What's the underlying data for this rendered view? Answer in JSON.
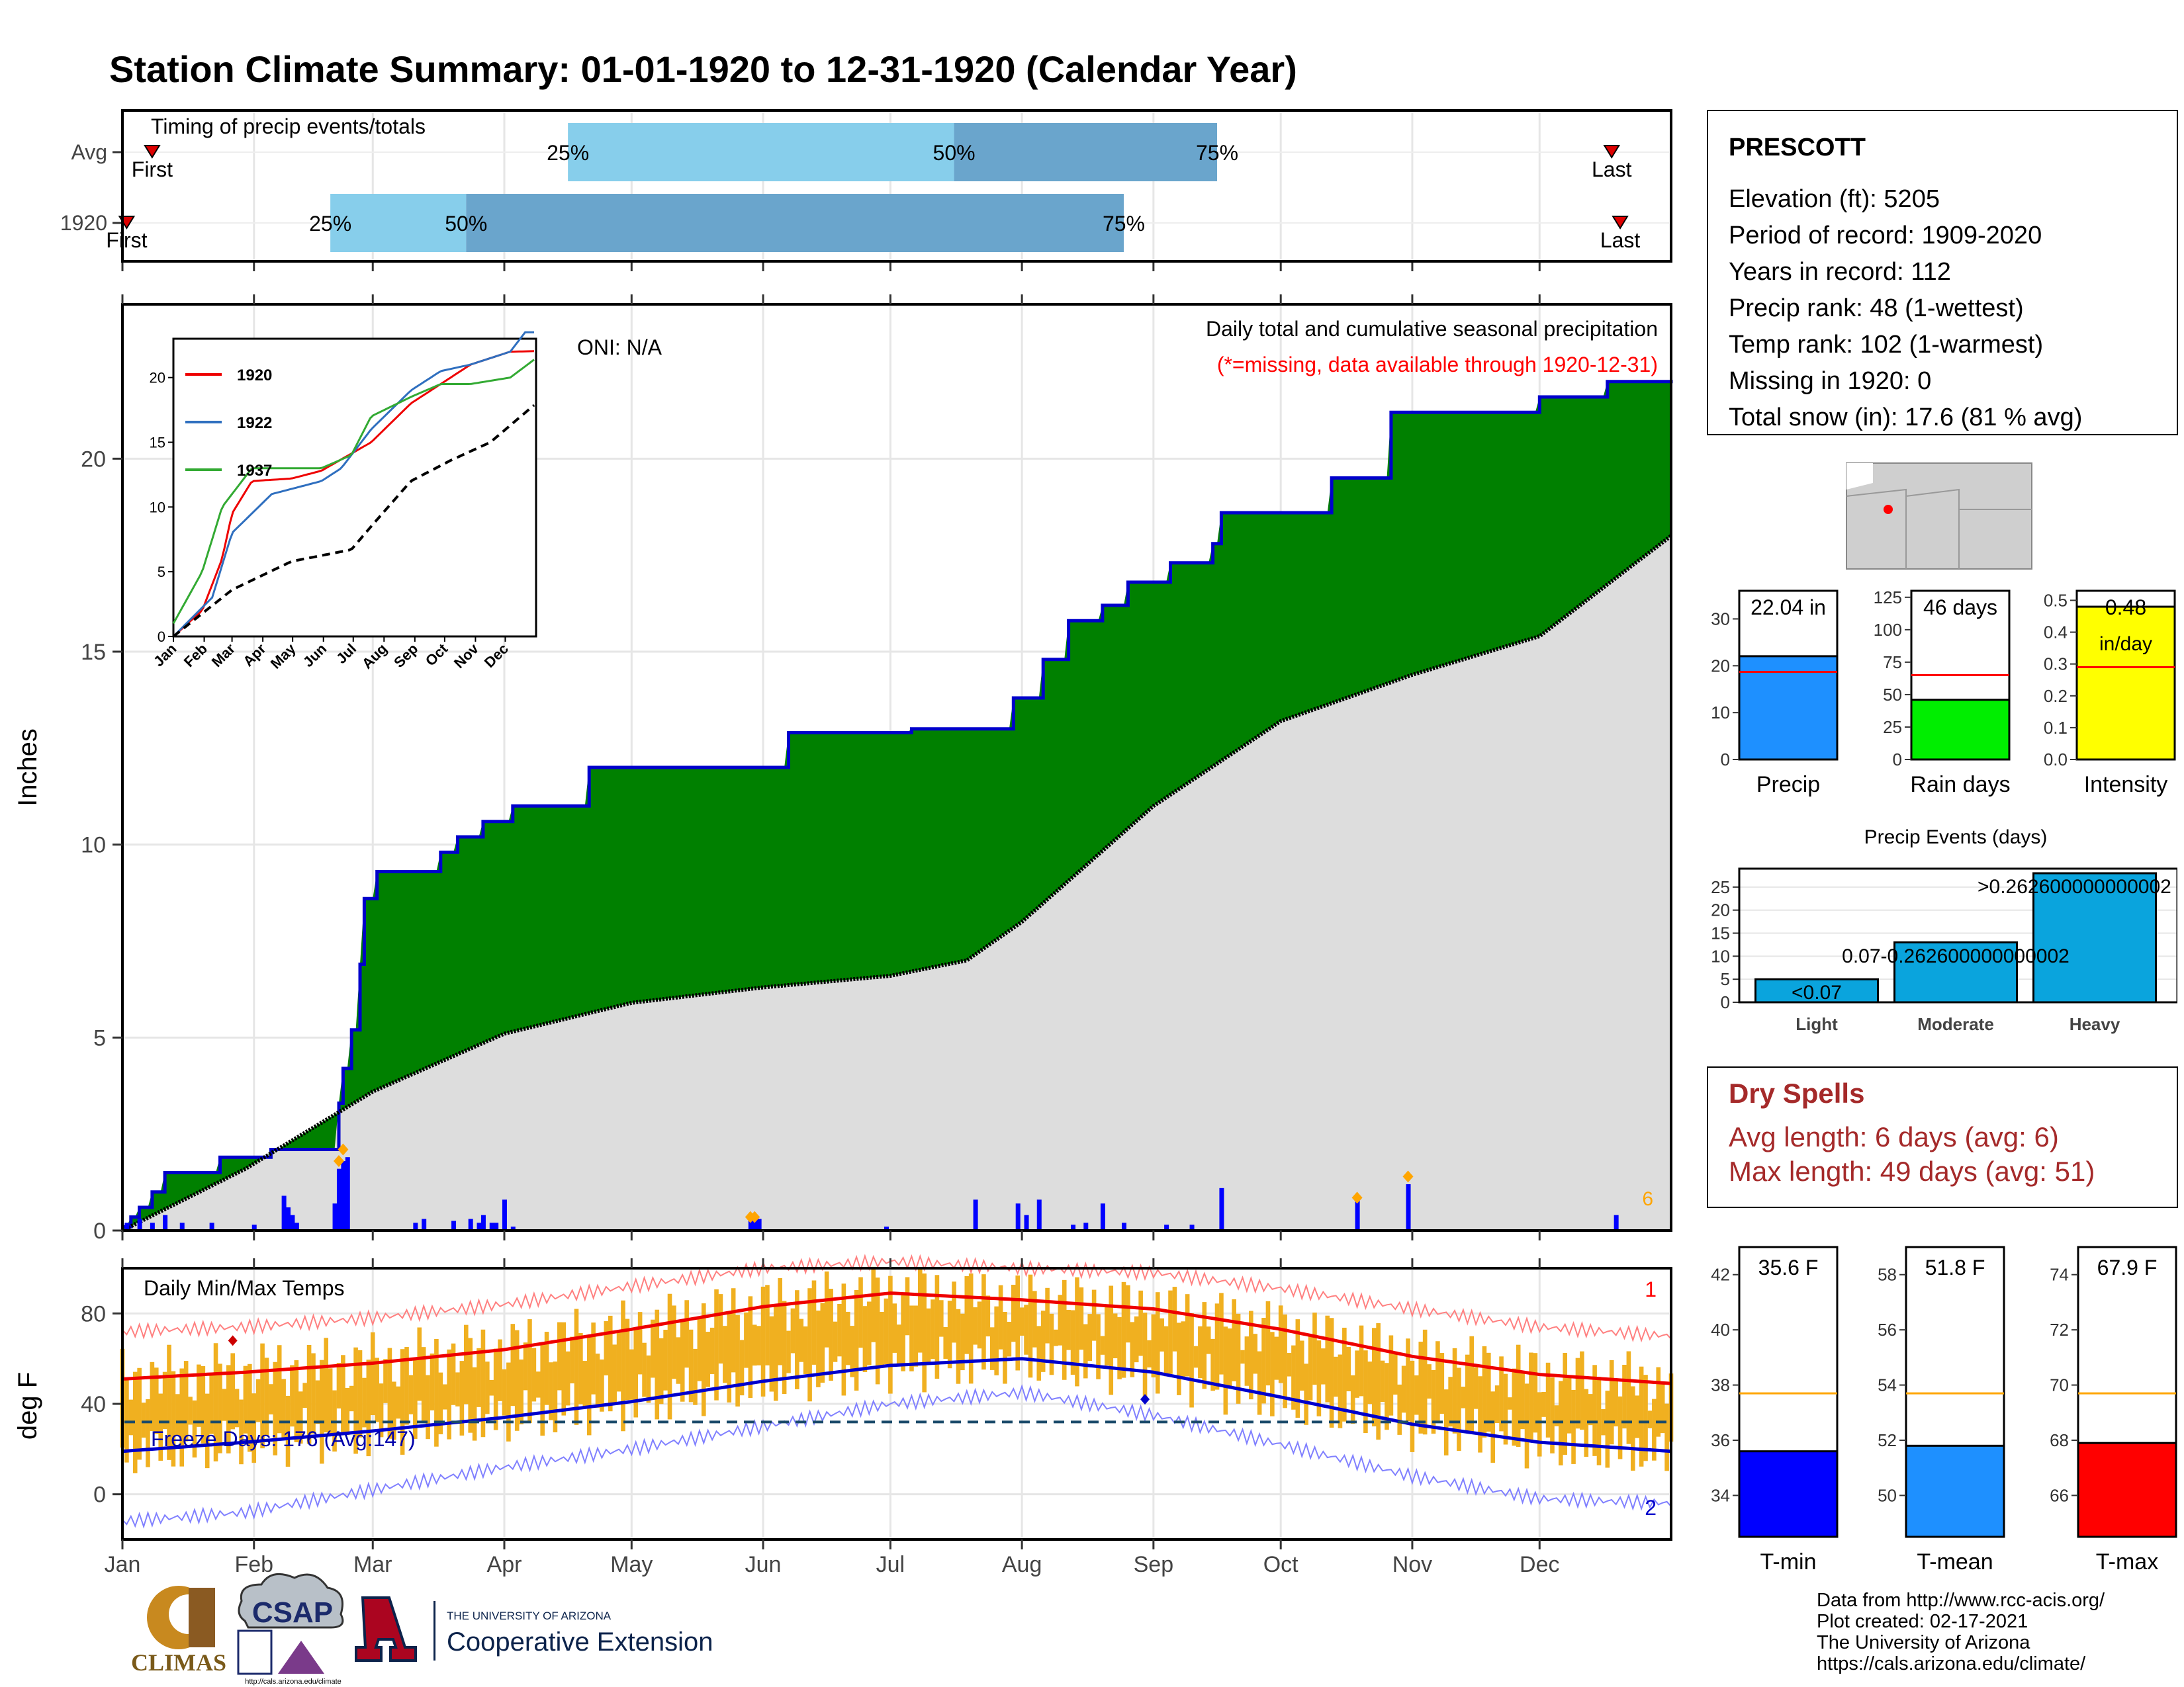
{
  "title": "Station Climate Summary: 01-01-1920 to 12-31-1920 (Calendar Year)",
  "colors": {
    "title": "#0a0a80",
    "q_light": "#87ceeb",
    "q_dark": "#6aa5cc",
    "precip_fill": "#008000",
    "precip_line": "#0000cc",
    "normal_fill": "#dddddd",
    "bar_daily": "#0000ff",
    "accent_orange": "#ffa500",
    "temp_bars": "#f0b020",
    "tmax_line": "#ee0000",
    "tmin_line": "#0000cc",
    "red": "#ff0000",
    "dry_text": "#a52a2a"
  },
  "months": [
    "Jan",
    "Feb",
    "Mar",
    "Apr",
    "May",
    "Jun",
    "Jul",
    "Aug",
    "Sep",
    "Oct",
    "Nov",
    "Dec"
  ],
  "timing": {
    "title": "Timing of precip events/totals",
    "rows": [
      {
        "label": "Avg",
        "first_label": "First",
        "last_label": "Last",
        "first_doy": 8,
        "last_doy": 352,
        "p25_doy": 106,
        "p50_doy": 197,
        "p75_doy": 259,
        "p25_label": "25%",
        "p50_label": "50%",
        "p75_label": "75%"
      },
      {
        "label": "1920",
        "first_label": "First",
        "last_label": "Last",
        "first_doy": 2,
        "last_doy": 354,
        "p25_doy": 50,
        "p50_doy": 82,
        "p75_doy": 237,
        "p25_label": "25%",
        "p50_label": "50%",
        "p75_label": "75%"
      }
    ]
  },
  "precip_panel": {
    "ylabel": "Inches",
    "yticks": [
      "0",
      "5",
      "10",
      "15",
      "20"
    ],
    "subtitle": "Daily total and cumulative seasonal precipitation",
    "missing_note": "(*=missing, data available through 1920-12-31)",
    "oni": "ONI: N/A",
    "count_label": "6"
  },
  "inset": {
    "yticks": [
      "0",
      "5",
      "10",
      "15",
      "20"
    ],
    "xticks": [
      "Jan",
      "Feb",
      "Mar",
      "Apr",
      "May",
      "Jun",
      "Jul",
      "Aug",
      "Sep",
      "Oct",
      "Nov",
      "Dec"
    ],
    "legend": [
      {
        "name": "1920",
        "color": "#ee0000"
      },
      {
        "name": "1922",
        "color": "#2f6fbf"
      },
      {
        "name": "1937",
        "color": "#33aa33"
      }
    ]
  },
  "temp_panel": {
    "ylabel": "deg F",
    "title": "Daily Min/Max Temps",
    "yticks": [
      "0",
      "40",
      "80"
    ],
    "freeze_label": "Freeze Days: 176 (Avg:147)",
    "max_count_label": "1",
    "min_count_label": "2"
  },
  "station": {
    "name": "PRESCOTT",
    "lines": [
      "Elevation (ft): 5205",
      "Period of record: 1909-2020",
      "Years in record: 112",
      "Precip rank: 48 (1-wettest)",
      "Temp rank: 102 (1-warmest)",
      "Missing in 1920: 0",
      "Total snow (in): 17.6 (81 % avg)"
    ]
  },
  "mini_bars": [
    {
      "label": "Precip",
      "value_label": "22.04 in",
      "value": 22.04,
      "avg": 18.7,
      "yticks": [
        "0",
        "10",
        "20",
        "30"
      ],
      "ymax": 36,
      "color": "#1e90ff"
    },
    {
      "label": "Rain days",
      "value_label": "46 days",
      "value": 46,
      "avg": 65,
      "yticks": [
        "0",
        "25",
        "50",
        "75",
        "100",
        "125"
      ],
      "ymax": 130,
      "color": "#00ee00"
    },
    {
      "label": "Intensity",
      "value_label": "0.48",
      "value_label2": "in/day",
      "value": 0.48,
      "avg": 0.29,
      "yticks": [
        "0.0",
        "0.1",
        "0.2",
        "0.3",
        "0.4",
        "0.5"
      ],
      "ymax": 0.53,
      "color": "#ffff00"
    }
  ],
  "events": {
    "title": "Precip Events (days)",
    "categories": [
      "Light",
      "Moderate",
      "Heavy"
    ],
    "values": [
      5,
      13,
      28
    ],
    "value_labels": [
      "<0.07",
      "0.07-0.262600000000002",
      ">0.262600000000002"
    ],
    "yticks": [
      "0",
      "5",
      "10",
      "15",
      "20",
      "25"
    ],
    "color": "#0aa4dd"
  },
  "dry_spells": {
    "title": "Dry Spells",
    "avg_line": "Avg length: 6 days (avg: 6)",
    "max_line": "Max length: 49 days (avg: 51)"
  },
  "temp_bars": [
    {
      "label": "T-min",
      "value_label": "35.6 F",
      "value": 35.6,
      "avg": 37.7,
      "ymin": 32.5,
      "ymax": 43,
      "yticks": [
        "34",
        "36",
        "38",
        "40",
        "42"
      ],
      "color": "#0000ff"
    },
    {
      "label": "T-mean",
      "value_label": "51.8 F",
      "value": 51.8,
      "avg": 53.7,
      "ymin": 48.5,
      "ymax": 59,
      "yticks": [
        "50",
        "52",
        "54",
        "56",
        "58"
      ],
      "color": "#1e90ff"
    },
    {
      "label": "T-max",
      "value_label": "67.9 F",
      "value": 67.9,
      "avg": 69.7,
      "ymin": 64.5,
      "ymax": 75,
      "yticks": [
        "66",
        "68",
        "70",
        "72",
        "74"
      ],
      "color": "#ff0000"
    }
  ],
  "credits": [
    "Data from http://www.rcc-acis.org/",
    "Plot created: 02-17-2021",
    "The University of Arizona",
    "https://cals.arizona.edu/climate/"
  ],
  "logos": {
    "climas": "CLIMAS",
    "csap": "CSAP",
    "csap_url": "http://cals.arizona.edu/climate",
    "ua_small": "THE UNIVERSITY OF ARIZONA",
    "ua_big": "Cooperative Extension"
  },
  "chart_data": [
    {
      "type": "bar",
      "title": "Timing of precip events/totals",
      "categories": [
        "Avg",
        "1920"
      ],
      "series": [
        {
          "name": "25%",
          "values": [
            106,
            50
          ]
        },
        {
          "name": "50%",
          "values": [
            197,
            82
          ]
        },
        {
          "name": "75%",
          "values": [
            259,
            237
          ]
        }
      ]
    },
    {
      "type": "area",
      "title": "Daily total and cumulative seasonal precipitation",
      "ylabel": "Inches",
      "ylim": [
        0,
        24
      ],
      "x_unit": "day of year",
      "series": [
        {
          "name": "1920 cumulative",
          "x": [
            1,
            3,
            5,
            8,
            11,
            24,
            36,
            52,
            53,
            55,
            57,
            58,
            61,
            76,
            80,
            86,
            93,
            111,
            126,
            129,
            140,
            158,
            169,
            187,
            202,
            211,
            218,
            224,
            232,
            238,
            248,
            258,
            260,
            273,
            286,
            298,
            300,
            335,
            351,
            366
          ],
          "values": [
            0.1,
            0.35,
            0.6,
            1.0,
            1.5,
            1.9,
            2.1,
            3.3,
            4.2,
            5.2,
            6.9,
            8.6,
            9.3,
            9.8,
            10.2,
            10.6,
            11.0,
            12.0,
            12.0,
            12.0,
            12.0,
            12.9,
            12.9,
            13.0,
            13.0,
            13.8,
            14.8,
            15.8,
            16.2,
            16.8,
            17.3,
            17.8,
            18.6,
            18.6,
            19.5,
            19.5,
            21.2,
            21.6,
            22.0,
            22.04
          ]
        },
        {
          "name": "Average cumulative",
          "x": [
            1,
            30,
            60,
            91,
            121,
            152,
            182,
            200,
            213,
            244,
            274,
            305,
            335,
            366
          ],
          "values": [
            0,
            1.6,
            3.6,
            5.1,
            5.9,
            6.3,
            6.6,
            7.0,
            8.0,
            11.0,
            13.2,
            14.4,
            15.4,
            18.0
          ]
        }
      ],
      "daily_bars": {
        "x": [
          2,
          5,
          8,
          11,
          15,
          22,
          32,
          39,
          40,
          41,
          42,
          51,
          52,
          53,
          54,
          70,
          72,
          79,
          83,
          85,
          86,
          88,
          89,
          91,
          93,
          149,
          150,
          151,
          181,
          202,
          212,
          214,
          217,
          225,
          228,
          232,
          237,
          247,
          253,
          260,
          292,
          304,
          353
        ],
        "values": [
          0.2,
          0.3,
          0.2,
          0.4,
          0.2,
          0.2,
          0.15,
          0.9,
          0.6,
          0.4,
          0.2,
          0.7,
          1.6,
          1.8,
          1.9,
          0.2,
          0.3,
          0.25,
          0.3,
          0.2,
          0.4,
          0.2,
          0.2,
          0.8,
          0.1,
          0.3,
          0.4,
          0.3,
          0.1,
          0.8,
          0.7,
          0.4,
          0.8,
          0.15,
          0.2,
          0.7,
          0.2,
          0.15,
          0.15,
          1.1,
          0.8,
          1.2,
          0.4
        ]
      }
    },
    {
      "type": "line",
      "title": "Daily Min/Max Temps",
      "ylabel": "deg F",
      "ylim": [
        -20,
        100
      ],
      "x_unit": "day of year",
      "series": [
        {
          "name": "Avg max",
          "x": [
            1,
            30,
            60,
            91,
            121,
            152,
            182,
            213,
            244,
            274,
            305,
            335,
            366
          ],
          "values": [
            51,
            54,
            58,
            64,
            73,
            83,
            89,
            86,
            82,
            73,
            61,
            53,
            49
          ]
        },
        {
          "name": "Avg min",
          "x": [
            1,
            30,
            60,
            91,
            121,
            152,
            182,
            213,
            244,
            274,
            305,
            335,
            366
          ],
          "values": [
            19,
            23,
            28,
            34,
            41,
            50,
            57,
            60,
            54,
            43,
            31,
            23,
            19
          ]
        },
        {
          "name": "Record max",
          "x": [
            1,
            30,
            60,
            91,
            121,
            152,
            182,
            213,
            244,
            274,
            305,
            335,
            366
          ],
          "values": [
            72,
            74,
            78,
            84,
            92,
            100,
            103,
            100,
            98,
            91,
            82,
            74,
            70
          ]
        },
        {
          "name": "Record min",
          "x": [
            1,
            30,
            60,
            91,
            121,
            152,
            182,
            213,
            244,
            274,
            305,
            335,
            366
          ],
          "values": [
            -12,
            -8,
            2,
            12,
            20,
            30,
            40,
            45,
            35,
            22,
            8,
            -2,
            -4
          ]
        }
      ],
      "freeze_line": 32
    },
    {
      "type": "line",
      "title": "",
      "xticks": [
        "Jan",
        "Feb",
        "Mar",
        "Apr",
        "May",
        "Jun",
        "Jul",
        "Aug",
        "Sep",
        "Oct",
        "Nov",
        "Dec"
      ],
      "ylim": [
        0,
        23
      ],
      "series": [
        {
          "name": "1920",
          "x": [
            1,
            30,
            50,
            60,
            80,
            120,
            150,
            200,
            240,
            270,
            300,
            340,
            366
          ],
          "values": [
            0,
            2,
            6,
            9.5,
            12,
            12.2,
            12.8,
            15,
            18,
            19.5,
            21,
            22,
            22.04
          ]
        },
        {
          "name": "1922",
          "x": [
            1,
            40,
            60,
            100,
            150,
            170,
            200,
            240,
            270,
            300,
            340,
            360
          ],
          "values": [
            0,
            3,
            8,
            11,
            12,
            13,
            16,
            19,
            20.5,
            21,
            22,
            24
          ]
        },
        {
          "name": "1937",
          "x": [
            1,
            30,
            50,
            80,
            150,
            180,
            200,
            240,
            270,
            300,
            340,
            366
          ],
          "values": [
            1,
            5,
            10,
            13,
            13,
            14,
            17,
            18.5,
            19.5,
            19.5,
            20,
            21.5
          ]
        },
        {
          "name": "Average",
          "x": [
            1,
            60,
            120,
            160,
            180,
            200,
            240,
            280,
            320,
            366
          ],
          "values": [
            0,
            3.6,
            5.8,
            6.4,
            6.7,
            8.5,
            12,
            13.6,
            15,
            18
          ]
        }
      ]
    },
    {
      "type": "bar",
      "title": "",
      "categories": [
        "Precip"
      ],
      "values": [
        22.04
      ],
      "ylim": [
        0,
        36
      ]
    },
    {
      "type": "bar",
      "title": "",
      "categories": [
        "Rain days"
      ],
      "values": [
        46
      ],
      "ylim": [
        0,
        130
      ]
    },
    {
      "type": "bar",
      "title": "",
      "categories": [
        "Intensity"
      ],
      "values": [
        0.48
      ],
      "ylim": [
        0,
        0.53
      ]
    },
    {
      "type": "bar",
      "title": "Precip Events (days)",
      "categories": [
        "Light",
        "Moderate",
        "Heavy"
      ],
      "values": [
        5,
        13,
        28
      ],
      "ylim": [
        0,
        29
      ]
    },
    {
      "type": "bar",
      "title": "",
      "categories": [
        "T-min",
        "T-mean",
        "T-max"
      ],
      "values": [
        35.6,
        51.8,
        67.9
      ]
    }
  ]
}
